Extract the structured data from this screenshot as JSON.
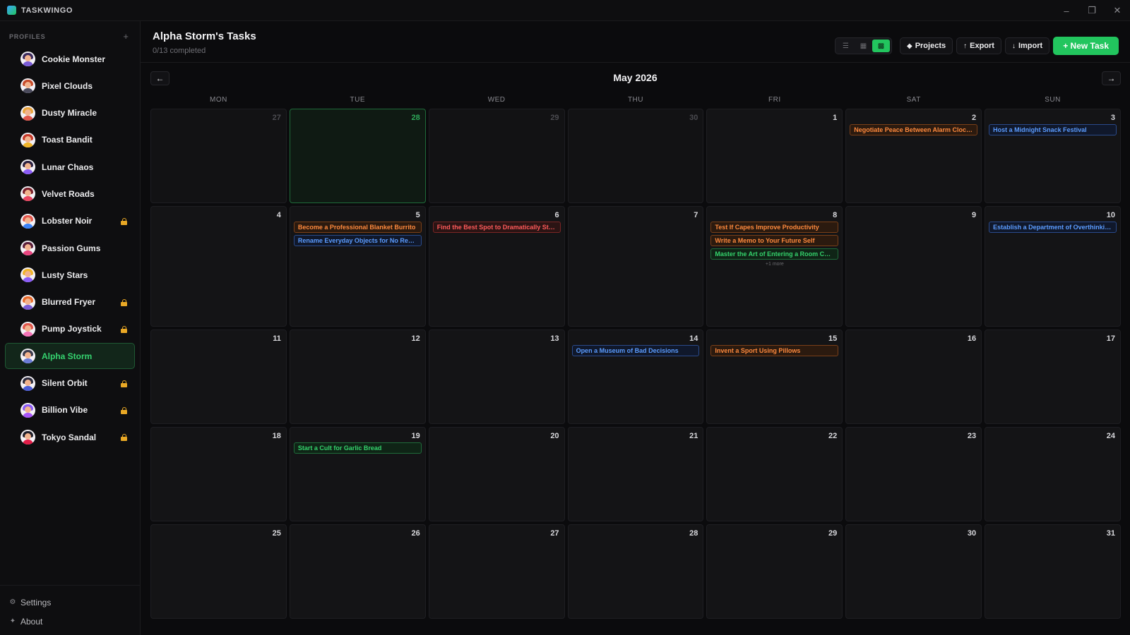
{
  "app": {
    "name": "TASKWINGO"
  },
  "sidebar": {
    "profiles_title": "PROFILES",
    "add_symbol": "+",
    "profiles": [
      {
        "name": "Cookie Monster",
        "locked": false,
        "active": false,
        "hair": "#3b2a5c",
        "body": "#7b5cd6"
      },
      {
        "name": "Pixel Clouds",
        "locked": false,
        "active": false,
        "hair": "#c74b2a",
        "body": "#4b4b5c"
      },
      {
        "name": "Dusty Miracle",
        "locked": false,
        "active": false,
        "hair": "#e8a33a",
        "body": "#e2574c"
      },
      {
        "name": "Toast Bandit",
        "locked": false,
        "active": false,
        "hair": "#c53a2a",
        "body": "#f0b429"
      },
      {
        "name": "Lunar Chaos",
        "locked": false,
        "active": false,
        "hair": "#2b2140",
        "body": "#8b5cf6"
      },
      {
        "name": "Velvet Roads",
        "locked": false,
        "active": false,
        "hair": "#7a1f2a",
        "body": "#e94560"
      },
      {
        "name": "Lobster Noir",
        "locked": true,
        "active": false,
        "hair": "#e2574c",
        "body": "#3b82f6"
      },
      {
        "name": "Passion Gums",
        "locked": false,
        "active": false,
        "hair": "#5a1f3a",
        "body": "#e94580"
      },
      {
        "name": "Lusty Stars",
        "locked": false,
        "active": false,
        "hair": "#f0b429",
        "body": "#8b5cf6"
      },
      {
        "name": "Blurred Fryer",
        "locked": true,
        "active": false,
        "hair": "#e86a2a",
        "body": "#7b5cd6"
      },
      {
        "name": "Pump Joystick",
        "locked": true,
        "active": false,
        "hair": "#e2574c",
        "body": "#f472b6"
      },
      {
        "name": "Alpha Storm",
        "locked": false,
        "active": true,
        "hair": "#3b3b4c",
        "body": "#6b7cd6"
      },
      {
        "name": "Silent Orbit",
        "locked": true,
        "active": false,
        "hair": "#2b2b3c",
        "body": "#4b5cd6"
      },
      {
        "name": "Billion Vibe",
        "locked": true,
        "active": false,
        "hair": "#8b5cf6",
        "body": "#a855f7"
      },
      {
        "name": "Tokyo Sandal",
        "locked": true,
        "active": false,
        "hair": "#1f1f2a",
        "body": "#e11d48"
      }
    ],
    "footer": [
      {
        "label": "Settings",
        "icon": "gear-icon",
        "glyph": "⚙"
      },
      {
        "label": "About",
        "icon": "sparkle-icon",
        "glyph": "✦"
      }
    ]
  },
  "header": {
    "title": "Alpha Storm's Tasks",
    "subtitle": "0/13 completed",
    "projects_label": "Projects",
    "export_label": "Export",
    "import_label": "Import",
    "new_task_label": "+ New Task"
  },
  "calendar": {
    "month_title": "May 2026",
    "weekdays": [
      "MON",
      "TUE",
      "WED",
      "THU",
      "FRI",
      "SAT",
      "SUN"
    ],
    "weeks": [
      [
        {
          "day": "27",
          "other": true,
          "tasks": []
        },
        {
          "day": "28",
          "other": true,
          "today": true,
          "tasks": []
        },
        {
          "day": "29",
          "other": true,
          "tasks": []
        },
        {
          "day": "30",
          "other": true,
          "tasks": []
        },
        {
          "day": "1",
          "tasks": []
        },
        {
          "day": "2",
          "tasks": [
            {
              "title": "Negotiate Peace Between Alarm Clocks and Humans",
              "color": "orange"
            }
          ]
        },
        {
          "day": "3",
          "tasks": [
            {
              "title": "Host a Midnight Snack Festival",
              "color": "blue"
            }
          ]
        }
      ],
      [
        {
          "day": "4",
          "tasks": []
        },
        {
          "day": "5",
          "tasks": [
            {
              "title": "Become a Professional Blanket Burrito",
              "color": "orange"
            },
            {
              "title": "Rename Everyday Objects for No Reason",
              "color": "blue"
            }
          ]
        },
        {
          "day": "6",
          "tasks": [
            {
              "title": "Find the Best Spot to Dramatically Stare Out the Window",
              "color": "red"
            }
          ]
        },
        {
          "day": "7",
          "tasks": []
        },
        {
          "day": "8",
          "tasks": [
            {
              "title": "Test If Capes Improve Productivity",
              "color": "orange"
            },
            {
              "title": "Write a Memo to Your Future Self",
              "color": "orange"
            },
            {
              "title": "Master the Art of Entering a Room Coolly",
              "color": "green"
            }
          ],
          "more": "+1 more"
        },
        {
          "day": "9",
          "tasks": []
        },
        {
          "day": "10",
          "tasks": [
            {
              "title": "Establish a Department of Overthinking",
              "color": "blue"
            }
          ]
        }
      ],
      [
        {
          "day": "11",
          "tasks": []
        },
        {
          "day": "12",
          "tasks": []
        },
        {
          "day": "13",
          "tasks": []
        },
        {
          "day": "14",
          "tasks": [
            {
              "title": "Open a Museum of Bad Decisions",
              "color": "blue"
            }
          ]
        },
        {
          "day": "15",
          "tasks": [
            {
              "title": "Invent a Sport Using Pillows",
              "color": "orange"
            }
          ]
        },
        {
          "day": "16",
          "tasks": []
        },
        {
          "day": "17",
          "tasks": []
        }
      ],
      [
        {
          "day": "18",
          "tasks": []
        },
        {
          "day": "19",
          "tasks": [
            {
              "title": "Start a Cult for Garlic Bread",
              "color": "green"
            }
          ]
        },
        {
          "day": "20",
          "tasks": []
        },
        {
          "day": "21",
          "tasks": []
        },
        {
          "day": "22",
          "tasks": []
        },
        {
          "day": "23",
          "tasks": []
        },
        {
          "day": "24",
          "tasks": []
        }
      ],
      [
        {
          "day": "25",
          "tasks": []
        },
        {
          "day": "26",
          "tasks": []
        },
        {
          "day": "27",
          "tasks": []
        },
        {
          "day": "28",
          "tasks": []
        },
        {
          "day": "29",
          "tasks": []
        },
        {
          "day": "30",
          "tasks": []
        },
        {
          "day": "31",
          "tasks": []
        }
      ]
    ]
  },
  "colors": {
    "accent": "#22c55e",
    "orange": "#ff8a3d",
    "red": "#ff5a5a",
    "blue": "#5b9cff",
    "green": "#34d36c",
    "lock": "#e9a825"
  }
}
